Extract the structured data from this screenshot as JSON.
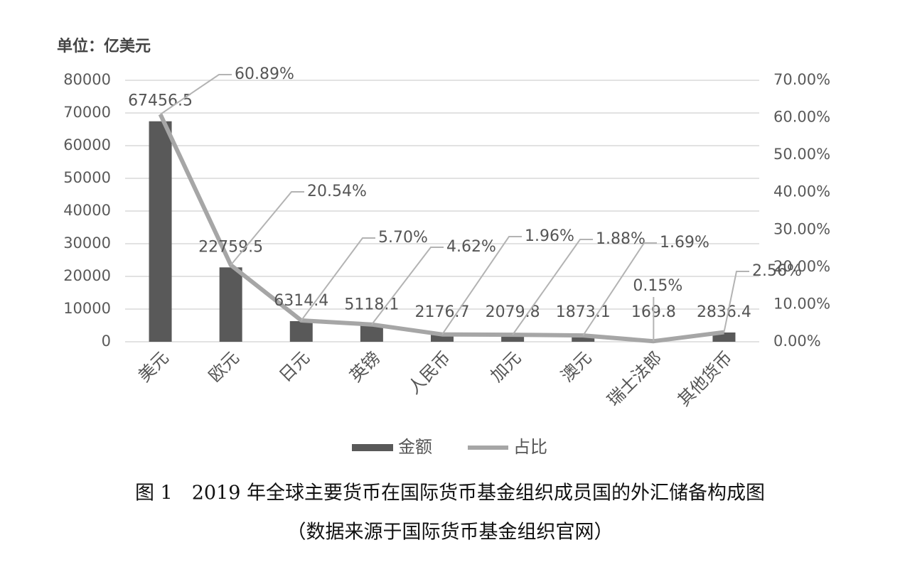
{
  "chart_data": {
    "type": "bar-line",
    "unit_label": "单位：亿美元",
    "categories": [
      "美元",
      "欧元",
      "日元",
      "英镑",
      "人民币",
      "加元",
      "澳元",
      "瑞士法郎",
      "其他货币"
    ],
    "series": [
      {
        "name": "金额",
        "color": "#595959",
        "values": [
          67456.5,
          22759.5,
          6314.4,
          5118.1,
          2176.7,
          2079.8,
          1873.1,
          169.8,
          2836.4
        ]
      },
      {
        "name": "占比",
        "color": "#a6a6a6",
        "axis": "y2",
        "values": [
          60.89,
          20.54,
          5.7,
          4.62,
          1.96,
          1.88,
          1.69,
          0.15,
          2.56
        ],
        "value_labels": [
          "60.89%",
          "20.54%",
          "5.70%",
          "4.62%",
          "1.96%",
          "1.88%",
          "1.69%",
          "0.15%",
          "2.56%"
        ]
      }
    ],
    "ylim": [
      0,
      80000
    ],
    "yticks": [
      0,
      10000,
      20000,
      30000,
      40000,
      50000,
      60000,
      70000,
      80000
    ],
    "y2lim": [
      0,
      70
    ],
    "y2ticks": [
      {
        "value": 0,
        "label": "0.00%"
      },
      {
        "value": 10,
        "label": "10.00%"
      },
      {
        "value": 20,
        "label": "20.00%"
      },
      {
        "value": 30,
        "label": "30.00%"
      },
      {
        "value": 40,
        "label": "40.00%"
      },
      {
        "value": 50,
        "label": "50.00%"
      },
      {
        "value": 60,
        "label": "60.00%"
      },
      {
        "value": 70,
        "label": "70.00%"
      }
    ],
    "grid": true,
    "legend": "bottom",
    "caption": "图 1　2019 年全球主要货币在国际货币基金组织成员国的外汇储备构成图",
    "source": "（数据来源于国际货币基金组织官网）"
  }
}
